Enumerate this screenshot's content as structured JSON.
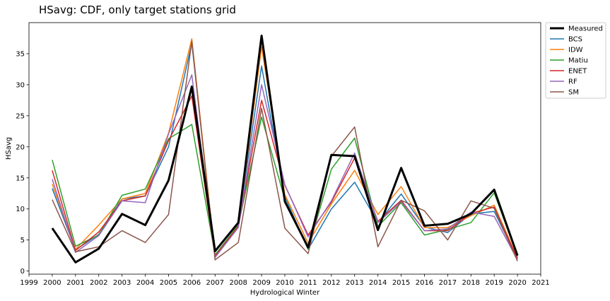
{
  "chart_data": {
    "type": "line",
    "title": "HSavg: CDF, only target stations grid",
    "xlabel": "Hydrological Winter",
    "ylabel": "HSavg",
    "xlim": [
      1999,
      2021
    ],
    "ylim": [
      -0.5,
      40
    ],
    "x_ticks": [
      "1999",
      "2000",
      "2001",
      "2002",
      "2003",
      "2004",
      "2005",
      "2006",
      "2007",
      "2008",
      "2009",
      "2010",
      "2011",
      "2012",
      "2013",
      "2014",
      "2015",
      "2016",
      "2017",
      "2018",
      "2019",
      "2020",
      "2021"
    ],
    "y_ticks": [
      "0",
      "5",
      "10",
      "15",
      "20",
      "25",
      "30",
      "35"
    ],
    "grid": false,
    "legend_position": "outside-right",
    "x": [
      2000,
      2001,
      2002,
      2003,
      2004,
      2005,
      2006,
      2007,
      2008,
      2009,
      2010,
      2011,
      2012,
      2013,
      2014,
      2015,
      2016,
      2017,
      2018,
      2019,
      2020
    ],
    "series": [
      {
        "name": "Measured",
        "color": "#000000",
        "values": [
          6.9,
          1.4,
          3.6,
          9.2,
          7.4,
          14.6,
          29.7,
          3.2,
          7.8,
          37.9,
          11.2,
          3.8,
          18.7,
          18.5,
          6.6,
          16.6,
          7.3,
          7.6,
          9.2,
          13.1,
          2.5
        ]
      },
      {
        "name": "BCS",
        "color": "#1f77b4",
        "values": [
          13.3,
          3.4,
          5.9,
          11.6,
          12.1,
          20.0,
          36.7,
          2.5,
          7.4,
          33.0,
          12.0,
          3.5,
          10.0,
          14.3,
          7.8,
          12.4,
          7.1,
          6.2,
          9.2,
          9.6,
          2.0
        ]
      },
      {
        "name": "IDW",
        "color": "#ff7f0e",
        "values": [
          14.0,
          3.5,
          7.4,
          11.6,
          12.5,
          22.2,
          37.4,
          2.3,
          7.2,
          36.1,
          12.3,
          4.5,
          10.8,
          16.2,
          9.1,
          13.6,
          7.0,
          7.0,
          8.9,
          10.6,
          2.1
        ]
      },
      {
        "name": "Matiu",
        "color": "#2ca02c",
        "values": [
          17.9,
          4.0,
          5.8,
          12.2,
          13.2,
          21.3,
          23.6,
          2.6,
          7.4,
          24.8,
          11.5,
          3.5,
          16.4,
          21.4,
          7.2,
          11.0,
          5.8,
          6.7,
          7.8,
          12.6,
          2.3
        ]
      },
      {
        "name": "ENET",
        "color": "#d62728",
        "values": [
          16.2,
          3.3,
          6.3,
          11.3,
          12.1,
          21.0,
          28.2,
          2.4,
          7.2,
          27.5,
          13.8,
          5.8,
          11.1,
          18.2,
          8.0,
          11.4,
          6.5,
          6.5,
          9.3,
          10.3,
          2.0
        ]
      },
      {
        "name": "RF",
        "color": "#9467bd",
        "values": [
          14.8,
          3.0,
          5.7,
          11.3,
          11.0,
          22.1,
          31.6,
          2.2,
          7.0,
          30.0,
          13.9,
          5.5,
          11.3,
          19.0,
          7.8,
          11.2,
          6.5,
          6.8,
          9.5,
          8.8,
          1.8
        ]
      },
      {
        "name": "SM",
        "color": "#8c564b",
        "values": [
          11.5,
          3.1,
          3.9,
          6.5,
          4.6,
          9.1,
          37.0,
          1.8,
          4.6,
          26.2,
          6.9,
          2.8,
          18.5,
          23.2,
          3.9,
          11.4,
          9.7,
          5.0,
          11.3,
          10.1,
          1.6
        ]
      }
    ]
  }
}
